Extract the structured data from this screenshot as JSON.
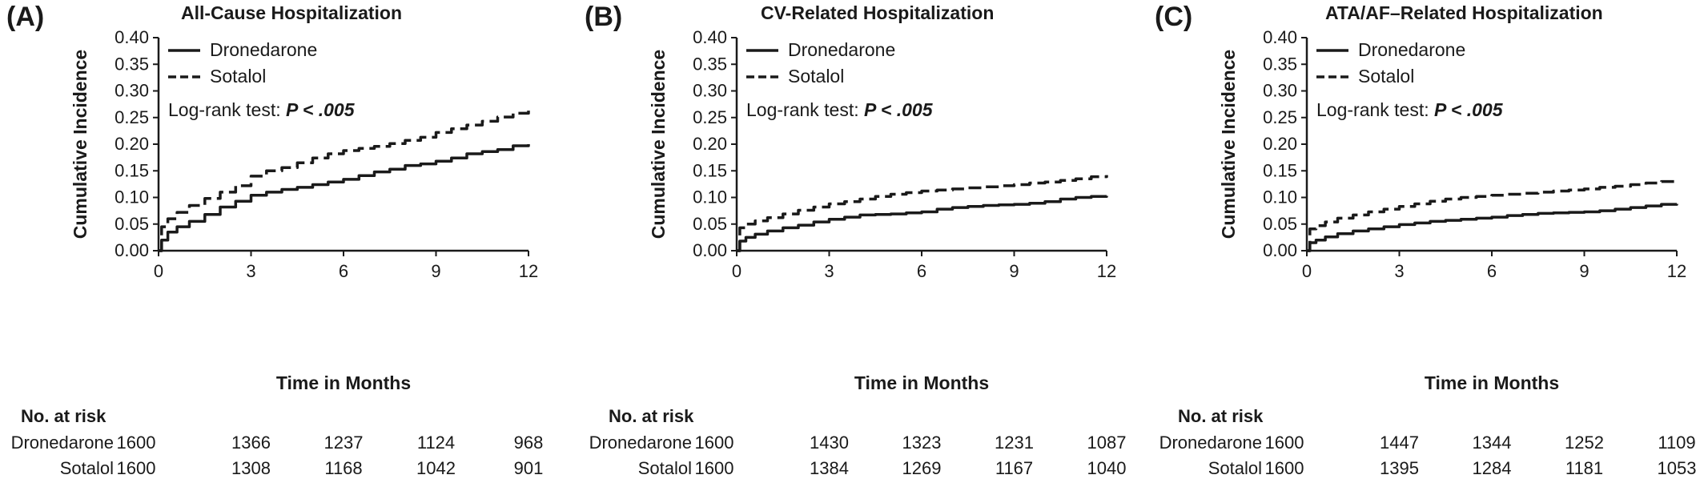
{
  "chart_data": [
    {
      "type": "line",
      "panel": "(A)",
      "title": "All-Cause Hospitalization",
      "xlabel": "Time in Months",
      "ylabel": "Cumulative Incidence",
      "xlim": [
        0,
        12
      ],
      "ylim": [
        0,
        0.4
      ],
      "xticks": [
        "0",
        "3",
        "6",
        "9",
        "12"
      ],
      "yticks": [
        "0.00",
        "0.05",
        "0.10",
        "0.15",
        "0.20",
        "0.25",
        "0.30",
        "0.35",
        "0.40"
      ],
      "legend": {
        "placement": "top-left",
        "entries": [
          "Dronedarone",
          "Sotalol"
        ]
      },
      "annotation": {
        "prefix": "Log-rank test: ",
        "value": "P < .005"
      },
      "series": [
        {
          "name": "Dronedarone",
          "style": "solid",
          "x": [
            0,
            0.1,
            0.3,
            0.6,
            1,
            1.5,
            2,
            2.5,
            3,
            3.5,
            4,
            4.5,
            5,
            5.5,
            6,
            6.5,
            7,
            7.5,
            8,
            8.5,
            9,
            9.5,
            10,
            10.5,
            11,
            11.5,
            12
          ],
          "y": [
            0.0,
            0.02,
            0.035,
            0.045,
            0.055,
            0.068,
            0.082,
            0.093,
            0.104,
            0.11,
            0.115,
            0.119,
            0.124,
            0.129,
            0.134,
            0.141,
            0.148,
            0.153,
            0.16,
            0.163,
            0.168,
            0.174,
            0.182,
            0.186,
            0.19,
            0.197,
            0.2
          ]
        },
        {
          "name": "Sotalol",
          "style": "dashed",
          "x": [
            0,
            0.1,
            0.3,
            0.6,
            1,
            1.5,
            2,
            2.5,
            3,
            3.5,
            4,
            4.5,
            5,
            5.5,
            6,
            6.5,
            7,
            7.5,
            8,
            8.5,
            9,
            9.5,
            10,
            10.5,
            11,
            11.5,
            12
          ],
          "y": [
            0.0,
            0.045,
            0.06,
            0.072,
            0.085,
            0.098,
            0.11,
            0.122,
            0.14,
            0.15,
            0.156,
            0.165,
            0.174,
            0.182,
            0.188,
            0.192,
            0.196,
            0.201,
            0.207,
            0.213,
            0.222,
            0.229,
            0.236,
            0.243,
            0.251,
            0.258,
            0.263
          ]
        }
      ],
      "risk_table": {
        "header": "No. at risk",
        "rows": [
          {
            "label": "Dronedarone",
            "values": [
              "1600",
              "1366",
              "1237",
              "1124",
              "968"
            ]
          },
          {
            "label": "Sotalol",
            "values": [
              "1600",
              "1308",
              "1168",
              "1042",
              "901"
            ]
          }
        ]
      }
    },
    {
      "type": "line",
      "panel": "(B)",
      "title": "CV-Related Hospitalization",
      "xlabel": "Time in Months",
      "ylabel": "Cumulative Incidence",
      "xlim": [
        0,
        12
      ],
      "ylim": [
        0,
        0.4
      ],
      "xticks": [
        "0",
        "3",
        "6",
        "9",
        "12"
      ],
      "yticks": [
        "0.00",
        "0.05",
        "0.10",
        "0.15",
        "0.20",
        "0.25",
        "0.30",
        "0.35",
        "0.40"
      ],
      "legend": {
        "placement": "top-left",
        "entries": [
          "Dronedarone",
          "Sotalol"
        ]
      },
      "annotation": {
        "prefix": "Log-rank test: ",
        "value": "P < .005"
      },
      "series": [
        {
          "name": "Dronedarone",
          "style": "solid",
          "x": [
            0,
            0.1,
            0.3,
            0.6,
            1,
            1.5,
            2,
            2.5,
            3,
            3.5,
            4,
            4.5,
            5,
            5.5,
            6,
            6.5,
            7,
            7.5,
            8,
            8.5,
            9,
            9.5,
            10,
            10.5,
            11,
            11.5,
            12
          ],
          "y": [
            0.0,
            0.018,
            0.025,
            0.031,
            0.037,
            0.043,
            0.048,
            0.054,
            0.059,
            0.063,
            0.067,
            0.068,
            0.069,
            0.071,
            0.073,
            0.078,
            0.081,
            0.083,
            0.085,
            0.086,
            0.087,
            0.089,
            0.092,
            0.097,
            0.1,
            0.102,
            0.103
          ]
        },
        {
          "name": "Sotalol",
          "style": "dashed",
          "x": [
            0,
            0.1,
            0.3,
            0.6,
            1,
            1.5,
            2,
            2.5,
            3,
            3.5,
            4,
            4.5,
            5,
            5.5,
            6,
            6.5,
            7,
            7.5,
            8,
            8.5,
            9,
            9.5,
            10,
            10.5,
            11,
            11.5,
            12
          ],
          "y": [
            0.0,
            0.043,
            0.05,
            0.056,
            0.062,
            0.069,
            0.076,
            0.082,
            0.088,
            0.092,
            0.097,
            0.102,
            0.106,
            0.109,
            0.112,
            0.114,
            0.116,
            0.118,
            0.12,
            0.122,
            0.124,
            0.127,
            0.129,
            0.132,
            0.135,
            0.139,
            0.142
          ]
        }
      ],
      "risk_table": {
        "header": "No. at risk",
        "rows": [
          {
            "label": "Dronedarone",
            "values": [
              "1600",
              "1430",
              "1323",
              "1231",
              "1087"
            ]
          },
          {
            "label": "Sotalol",
            "values": [
              "1600",
              "1384",
              "1269",
              "1167",
              "1040"
            ]
          }
        ]
      }
    },
    {
      "type": "line",
      "panel": "(C)",
      "title": "ATA/AF–Related Hospitalization",
      "xlabel": "Time in Months",
      "ylabel": "Cumulative Incidence",
      "xlim": [
        0,
        12
      ],
      "ylim": [
        0,
        0.4
      ],
      "xticks": [
        "0",
        "3",
        "6",
        "9",
        "12"
      ],
      "yticks": [
        "0.00",
        "0.05",
        "0.10",
        "0.15",
        "0.20",
        "0.25",
        "0.30",
        "0.35",
        "0.40"
      ],
      "legend": {
        "placement": "top-left",
        "entries": [
          "Dronedarone",
          "Sotalol"
        ]
      },
      "annotation": {
        "prefix": "Log-rank test: ",
        "value": "P < .005"
      },
      "series": [
        {
          "name": "Dronedarone",
          "style": "solid",
          "x": [
            0,
            0.1,
            0.3,
            0.6,
            1,
            1.5,
            2,
            2.5,
            3,
            3.5,
            4,
            4.5,
            5,
            5.5,
            6,
            6.5,
            7,
            7.5,
            8,
            8.5,
            9,
            9.5,
            10,
            10.5,
            11,
            11.5,
            12
          ],
          "y": [
            0.0,
            0.015,
            0.02,
            0.026,
            0.032,
            0.037,
            0.041,
            0.045,
            0.049,
            0.052,
            0.055,
            0.057,
            0.059,
            0.061,
            0.063,
            0.066,
            0.068,
            0.07,
            0.071,
            0.072,
            0.073,
            0.075,
            0.078,
            0.081,
            0.084,
            0.087,
            0.088
          ]
        },
        {
          "name": "Sotalol",
          "style": "dashed",
          "x": [
            0,
            0.1,
            0.3,
            0.6,
            1,
            1.5,
            2,
            2.5,
            3,
            3.5,
            4,
            4.5,
            5,
            5.5,
            6,
            6.5,
            7,
            7.5,
            8,
            8.5,
            9,
            9.5,
            10,
            10.5,
            11,
            11.5,
            12
          ],
          "y": [
            0.0,
            0.041,
            0.047,
            0.054,
            0.061,
            0.067,
            0.073,
            0.078,
            0.083,
            0.088,
            0.093,
            0.097,
            0.1,
            0.102,
            0.104,
            0.106,
            0.108,
            0.11,
            0.112,
            0.114,
            0.116,
            0.119,
            0.121,
            0.124,
            0.127,
            0.13,
            0.132
          ]
        }
      ],
      "risk_table": {
        "header": "No. at risk",
        "rows": [
          {
            "label": "Dronedarone",
            "values": [
              "1600",
              "1447",
              "1344",
              "1252",
              "1109"
            ]
          },
          {
            "label": "Sotalol",
            "values": [
              "1600",
              "1395",
              "1284",
              "1181",
              "1053"
            ]
          }
        ]
      }
    }
  ]
}
